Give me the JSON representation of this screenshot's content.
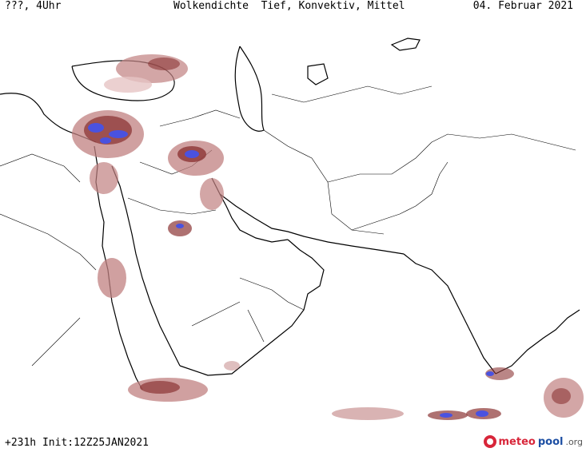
{
  "header": {
    "left": "???, 4Uhr",
    "center": "Wolkendichte  Tief, Konvektiv, Mittel",
    "right": "04. Februar 2021"
  },
  "footer": {
    "run_info": "+231h Init:12Z25JAN2021"
  },
  "logo": {
    "word_a": "meteo",
    "word_b": "pool",
    "word_c": ".org"
  },
  "colors": {
    "cloud_light": "#e6c4c4",
    "cloud_medium": "#c08080",
    "cloud_dark": "#8c3535",
    "cloud_dense": "#4a52e0",
    "borders": "#000000"
  }
}
